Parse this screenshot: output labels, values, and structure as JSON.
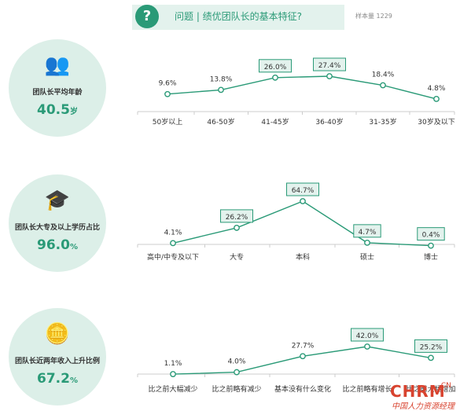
{
  "header": {
    "icon": "?",
    "title": "问题 | 绩优团队长的基本特征?",
    "sample": "样本量 1229"
  },
  "stats": [
    {
      "label": "团队长平均年龄",
      "value": "40.5",
      "unit": "岁",
      "icon": "people-icon"
    },
    {
      "label": "团队长大专及以上学历占比",
      "value": "96.0",
      "unit": "%",
      "icon": "graduation-cap-icon"
    },
    {
      "label": "团队长近两年收入上升比例",
      "value": "67.2",
      "unit": "%",
      "icon": "coins-icon"
    }
  ],
  "chart_data": [
    {
      "type": "line",
      "categories": [
        "50岁以上",
        "46-50岁",
        "41-45岁",
        "36-40岁",
        "31-35岁",
        "30岁及以下"
      ],
      "values": [
        9.6,
        13.8,
        26.0,
        27.4,
        18.4,
        4.8
      ],
      "labels": [
        "9.6%",
        "13.8%",
        "26.0%",
        "27.4%",
        "18.4%",
        "4.8%"
      ],
      "boxed": [
        false,
        false,
        true,
        true,
        false,
        false
      ]
    },
    {
      "type": "line",
      "categories": [
        "高中/中专及以下",
        "大专",
        "本科",
        "硕士",
        "博士"
      ],
      "values": [
        4.1,
        26.2,
        64.7,
        4.7,
        0.4
      ],
      "labels": [
        "4.1%",
        "26.2%",
        "64.7%",
        "4.7%",
        "0.4%"
      ],
      "boxed": [
        false,
        true,
        true,
        true,
        true
      ]
    },
    {
      "type": "line",
      "categories": [
        "比之前大幅减少",
        "比之前略有减少",
        "基本没有什么变化",
        "比之前略有增长",
        "比之前大幅增加"
      ],
      "values": [
        1.1,
        4.0,
        27.7,
        42.0,
        25.2
      ],
      "labels": [
        "1.1%",
        "4.0%",
        "27.7%",
        "42.0%",
        "25.2%"
      ],
      "boxed": [
        false,
        false,
        false,
        true,
        true
      ]
    }
  ],
  "watermark": {
    "main": "CHRM",
    "suffix": ".CN",
    "sub": "中国人力资源经理"
  },
  "colors": {
    "accent": "#2a9a77",
    "light": "#dcefe8",
    "box": "#e3f2ed",
    "watermark": "#d8432f"
  }
}
